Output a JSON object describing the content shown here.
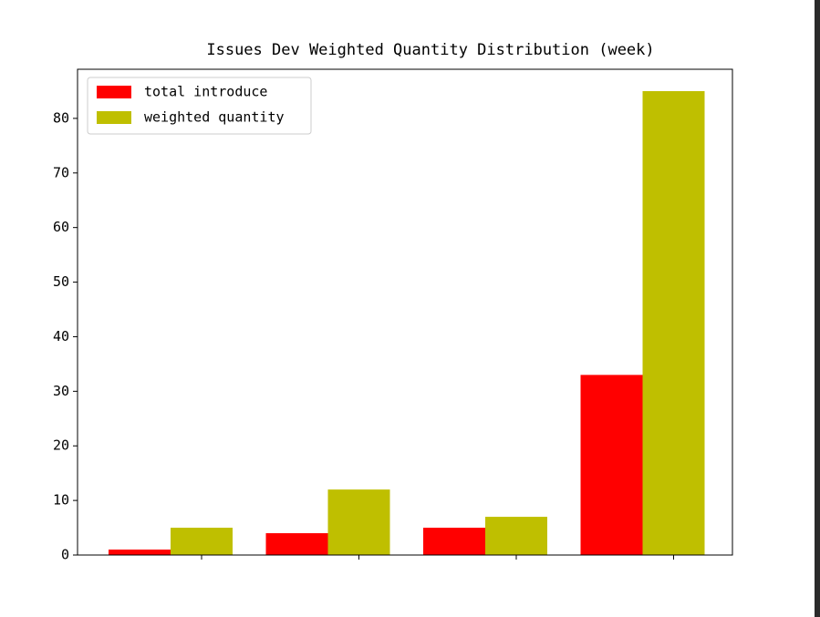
{
  "chart_data": {
    "type": "bar",
    "title": "Issues Dev Weighted Quantity Distribution (week)",
    "categories": [
      null,
      null,
      null,
      null
    ],
    "series": [
      {
        "name": "total introduce",
        "color": "#ff0000",
        "values": [
          1,
          4,
          5,
          33
        ]
      },
      {
        "name": "weighted quantity",
        "color": "#bfbf00",
        "values": [
          5,
          12,
          7,
          85
        ]
      }
    ],
    "ylim": [
      0,
      89
    ],
    "yticks": [
      0,
      10,
      20,
      30,
      40,
      50,
      60,
      70,
      80
    ],
    "legend": "upper left"
  }
}
